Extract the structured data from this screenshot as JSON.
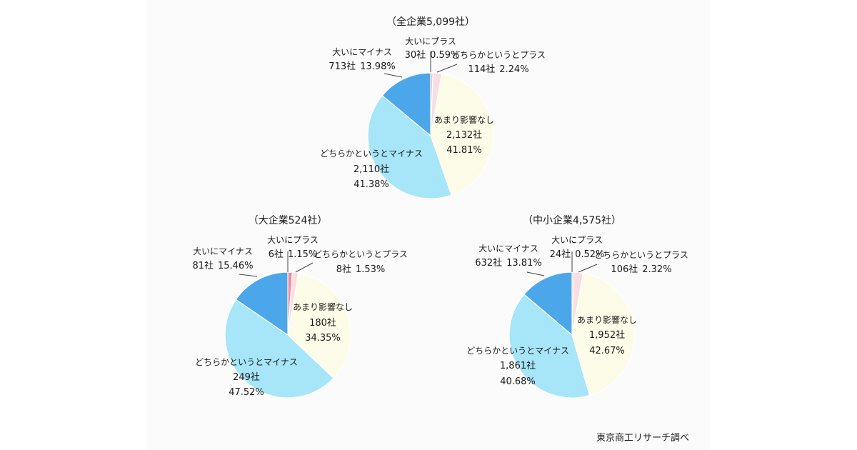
{
  "source_note": "東京商工リサーチ調べ",
  "colors": {
    "大いにプラス": "#f5b8c4",
    "どちらかというとプラス": "#f8dde2",
    "あまり影響なし": "#fdfce8",
    "どちらかというとマイナス": "#a6e6f8",
    "大いにマイナス": "#4ba7ea",
    "大いにプラス_alt": "#ee8a96",
    "edge": "#ffffff",
    "leader": "#444444"
  },
  "chart_data": [
    {
      "type": "pie",
      "title": "（全企業5,099社）",
      "slices": [
        {
          "category": "大いにプラス",
          "count": "30社",
          "percent": "0.59%",
          "value": 0.59
        },
        {
          "category": "どちらかというとプラス",
          "count": "114社",
          "percent": "2.24%",
          "value": 2.24
        },
        {
          "category": "あまり影響なし",
          "count": "2,132社",
          "percent": "41.81%",
          "value": 41.81
        },
        {
          "category": "どちらかというとマイナス",
          "count": "2,110社",
          "percent": "41.38%",
          "value": 41.38
        },
        {
          "category": "大いにマイナス",
          "count": "713社",
          "percent": "13.98%",
          "value": 13.98
        }
      ]
    },
    {
      "type": "pie",
      "title": "（大企業524社）",
      "slices": [
        {
          "category": "大いにプラス",
          "count": "6社",
          "percent": "1.15%",
          "value": 1.15
        },
        {
          "category": "どちらかというとプラス",
          "count": "8社",
          "percent": "1.53%",
          "value": 1.53
        },
        {
          "category": "あまり影響なし",
          "count": "180社",
          "percent": "34.35%",
          "value": 34.35
        },
        {
          "category": "どちらかというとマイナス",
          "count": "249社",
          "percent": "47.52%",
          "value": 47.52
        },
        {
          "category": "大いにマイナス",
          "count": "81社",
          "percent": "15.46%",
          "value": 15.46
        }
      ]
    },
    {
      "type": "pie",
      "title": "（中小企業4,575社）",
      "slices": [
        {
          "category": "大いにプラス",
          "count": "24社",
          "percent": "0.52%",
          "value": 0.52
        },
        {
          "category": "どちらかというとプラス",
          "count": "106社",
          "percent": "2.32%",
          "value": 2.32
        },
        {
          "category": "あまり影響なし",
          "count": "1,952社",
          "percent": "42.67%",
          "value": 42.67
        },
        {
          "category": "どちらかというとマイナス",
          "count": "1,861社",
          "percent": "40.68%",
          "value": 40.68
        },
        {
          "category": "大いにマイナス",
          "count": "632社",
          "percent": "13.81%",
          "value": 13.81
        }
      ]
    }
  ]
}
